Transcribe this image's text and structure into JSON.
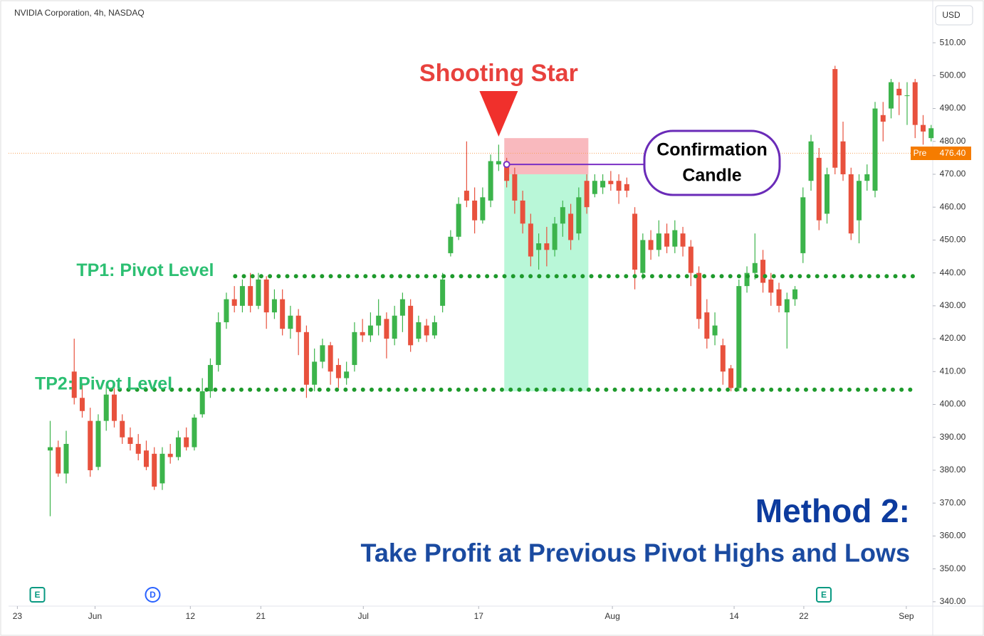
{
  "chart_data": {
    "type": "candlestick",
    "title": "NVIDIA Corporation, 4h, NASDAQ",
    "currency": "USD",
    "up_color": "#3cb44b",
    "down_color": "#e8513d",
    "xlim": [
      -5.2,
      110.2
    ],
    "ylim": [
      339.1,
      523
    ],
    "xticks": [
      {
        "value": -4.1,
        "label": "23"
      },
      {
        "value": 5.6,
        "label": "Jun"
      },
      {
        "value": 17.5,
        "label": "12"
      },
      {
        "value": 26.3,
        "label": "21"
      },
      {
        "value": 39.1,
        "label": "Jul"
      },
      {
        "value": 53.5,
        "label": "17"
      },
      {
        "value": 70.2,
        "label": "Aug"
      },
      {
        "value": 85.4,
        "label": "14"
      },
      {
        "value": 94.1,
        "label": "22"
      },
      {
        "value": 106.9,
        "label": "Sep"
      }
    ],
    "yticks": [
      {
        "value": 340,
        "label": "340.00"
      },
      {
        "value": 350,
        "label": "350.00"
      },
      {
        "value": 360,
        "label": "360.00"
      },
      {
        "value": 370,
        "label": "370.00"
      },
      {
        "value": 380,
        "label": "380.00"
      },
      {
        "value": 390,
        "label": "390.00"
      },
      {
        "value": 400,
        "label": "400.00"
      },
      {
        "value": 410,
        "label": "410.00"
      },
      {
        "value": 420,
        "label": "420.00"
      },
      {
        "value": 430,
        "label": "430.00"
      },
      {
        "value": 440,
        "label": "440.00"
      },
      {
        "value": 450,
        "label": "450.00"
      },
      {
        "value": 460,
        "label": "460.00"
      },
      {
        "value": 470,
        "label": "470.00"
      },
      {
        "value": 480,
        "label": "480.00"
      },
      {
        "value": 490,
        "label": "490.00"
      },
      {
        "value": 500,
        "label": "500.00"
      },
      {
        "value": 510,
        "label": "510.00"
      }
    ],
    "open": [
      386,
      387,
      379,
      410,
      402,
      395,
      381,
      395,
      403,
      395,
      390,
      388,
      386,
      385,
      376,
      385,
      384,
      390,
      387,
      397,
      404,
      412,
      425,
      432,
      430,
      436,
      430,
      438,
      428,
      432,
      423,
      427,
      422,
      406,
      413,
      418,
      412,
      408,
      412,
      422,
      421,
      424,
      426,
      420,
      427,
      430,
      420,
      424,
      421,
      430,
      446,
      451,
      465,
      462,
      456,
      462,
      473,
      473,
      470,
      462,
      455,
      447,
      449,
      447,
      455,
      458,
      452,
      468,
      464,
      466,
      468,
      468,
      467,
      458,
      440,
      450,
      447,
      452,
      448,
      452,
      448,
      440,
      428,
      421,
      418,
      411,
      405,
      436,
      440,
      444,
      438,
      435,
      428,
      432,
      446,
      468,
      475,
      458,
      502,
      480,
      470,
      456,
      468,
      465,
      488,
      490,
      496,
      494,
      498,
      485,
      481
    ],
    "high": [
      395,
      389,
      392,
      420,
      406,
      399,
      397,
      406,
      405,
      397,
      393,
      391,
      389,
      387,
      387,
      388,
      392,
      393,
      397,
      408,
      414,
      428,
      434,
      436,
      438,
      440,
      440,
      439,
      435,
      435,
      430,
      429,
      424,
      417,
      420,
      419,
      414,
      413,
      425,
      426,
      428,
      432,
      428,
      430,
      434,
      432,
      427,
      426,
      427,
      440,
      453,
      463,
      480,
      466,
      466,
      476,
      479,
      475,
      472,
      465,
      458,
      452,
      454,
      457,
      462,
      461,
      466,
      470,
      470,
      470,
      471,
      470,
      469,
      460,
      452,
      453,
      456,
      455,
      456,
      454,
      450,
      442,
      432,
      428,
      420,
      412,
      438,
      442,
      452,
      447,
      440,
      437,
      434,
      436,
      466,
      482,
      478,
      472,
      503,
      486,
      472,
      470,
      473,
      492,
      492,
      499,
      498,
      498,
      499,
      488,
      485
    ],
    "low": [
      366,
      378,
      376,
      400,
      396,
      378,
      380,
      392,
      393,
      388,
      386,
      383,
      380,
      374,
      374,
      382,
      383,
      386,
      386,
      396,
      402,
      410,
      423,
      428,
      428,
      428,
      429,
      423,
      426,
      421,
      420,
      415,
      402,
      404,
      411,
      406,
      405,
      406,
      410,
      419,
      419,
      421,
      414,
      418,
      422,
      416,
      419,
      419,
      420,
      428,
      445,
      450,
      460,
      452,
      455,
      460,
      471,
      466,
      458,
      452,
      442,
      441,
      442,
      445,
      451,
      447,
      450,
      458,
      463,
      464,
      465,
      461,
      463,
      435,
      438,
      444,
      445,
      446,
      446,
      445,
      436,
      423,
      417,
      418,
      406,
      404,
      404,
      434,
      438,
      434,
      430,
      428,
      417,
      430,
      443,
      465,
      453,
      455,
      470,
      468,
      450,
      449,
      465,
      463,
      480,
      487,
      488,
      485,
      481,
      479,
      480
    ],
    "close": [
      387,
      379,
      388,
      402,
      398,
      380,
      395,
      403,
      395,
      390,
      388,
      385,
      381,
      375,
      385,
      384,
      390,
      387,
      396,
      404,
      412,
      425,
      432,
      430,
      436,
      430,
      438,
      428,
      432,
      423,
      427,
      422,
      406,
      413,
      418,
      410,
      408,
      410,
      422,
      421,
      424,
      427,
      420,
      427,
      432,
      418,
      425,
      421,
      425,
      438,
      451,
      461,
      462,
      456,
      463,
      474,
      474,
      468,
      462,
      455,
      445,
      449,
      447,
      455,
      460,
      450,
      463,
      460,
      468,
      468,
      467,
      465,
      465,
      441,
      450,
      447,
      452,
      448,
      453,
      448,
      440,
      426,
      420,
      424,
      410,
      405,
      436,
      440,
      443,
      437,
      434,
      430,
      432,
      435,
      463,
      480,
      456,
      470,
      472,
      470,
      452,
      468,
      470,
      490,
      486,
      498,
      494,
      494,
      485,
      483,
      484
    ],
    "last_price": {
      "label": "Pre",
      "value": 476.4,
      "value_label": "476.40"
    },
    "levels": [
      {
        "name": "TP1: Pivot Level",
        "value": 439,
        "start": 23.1,
        "end": 108.4
      },
      {
        "name": "TP2: Pivot Level",
        "value": 404.5,
        "start": 7.6,
        "end": 108.4
      }
    ],
    "zones": {
      "start": 56.7,
      "end": 67.2,
      "stop": [
        470,
        481
      ],
      "target": [
        404,
        470
      ]
    },
    "shooting_star": {
      "label": "Shooting Star",
      "index": 56
    },
    "confirmation": {
      "lines": [
        "Confirmation",
        "Candle"
      ],
      "index": 57,
      "value": 473
    },
    "events": [
      {
        "label": "E",
        "x": -1.6
      },
      {
        "label": "D",
        "x": 12.8
      },
      {
        "label": "E",
        "x": 96.6
      }
    ],
    "method_title": "Method 2:",
    "method_subtitle": "Take Profit at Previous Pivot Highs and Lows"
  }
}
